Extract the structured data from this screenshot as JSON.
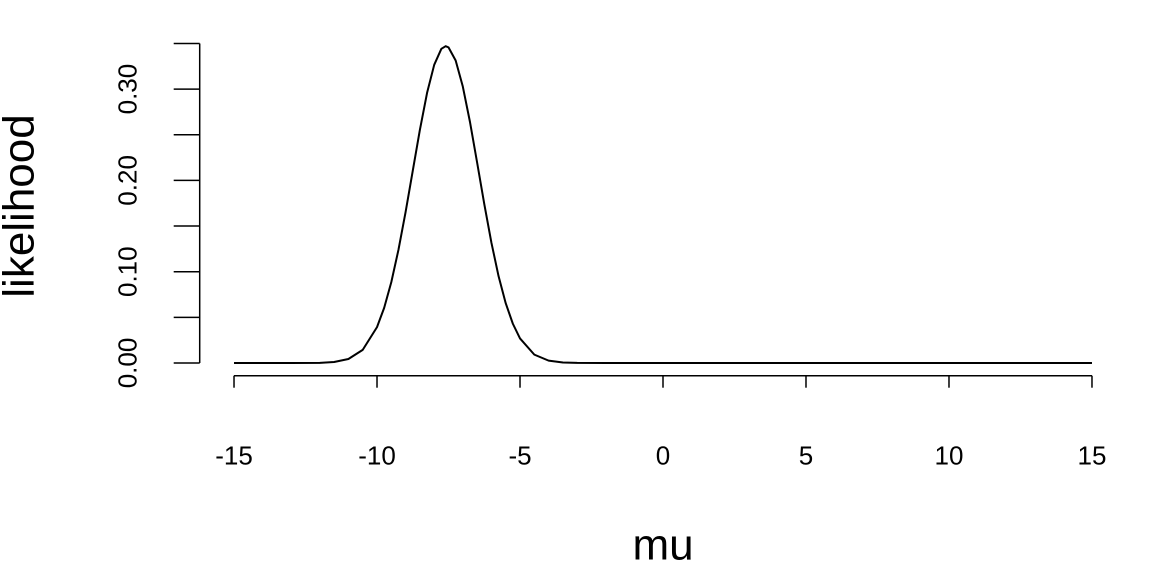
{
  "chart_data": {
    "type": "line",
    "xlabel": "mu",
    "ylabel": "likelihood",
    "color": "#000000",
    "x": [
      -15,
      -14,
      -13,
      -12,
      -11.5,
      -11,
      -10.5,
      -10,
      -9.75,
      -9.5,
      -9.25,
      -9,
      -8.75,
      -8.5,
      -8.25,
      -8,
      -7.75,
      -7.6,
      -7.5,
      -7.25,
      -7,
      -6.75,
      -6.5,
      -6.25,
      -6,
      -5.75,
      -5.5,
      -5.25,
      -5,
      -4.5,
      -4,
      -3.5,
      -3,
      -2,
      -1,
      0,
      1,
      2,
      3,
      4,
      5,
      6,
      7,
      8,
      9,
      10,
      11,
      12,
      13,
      14,
      15
    ],
    "values": [
      0,
      0,
      0,
      0.0002,
      0.0011,
      0.0044,
      0.0144,
      0.0393,
      0.0604,
      0.0886,
      0.124,
      0.1654,
      0.2105,
      0.2555,
      0.2958,
      0.3266,
      0.3441,
      0.347,
      0.3457,
      0.3313,
      0.3028,
      0.2641,
      0.2196,
      0.1742,
      0.1318,
      0.0951,
      0.0655,
      0.043,
      0.0269,
      0.0092,
      0.0026,
      0.0006,
      0.0001,
      0,
      0,
      0,
      0,
      0,
      0,
      0,
      0,
      0,
      0,
      0,
      0,
      0,
      0,
      0,
      0,
      0,
      0
    ],
    "xlim": [
      -16.2,
      16.2
    ],
    "ylim": [
      -0.0139,
      0.361
    ],
    "xticks": [
      -15,
      -10,
      -5,
      0,
      5,
      10,
      15
    ],
    "yticks": [
      {
        "value": 0,
        "label": "0.00"
      },
      {
        "value": 0.1,
        "label": "0.10"
      },
      {
        "value": 0.2,
        "label": "0.20"
      },
      {
        "value": 0.3,
        "label": "0.30"
      }
    ],
    "yminor_ticks": [
      0.05,
      0.15,
      0.25,
      0.35
    ]
  }
}
